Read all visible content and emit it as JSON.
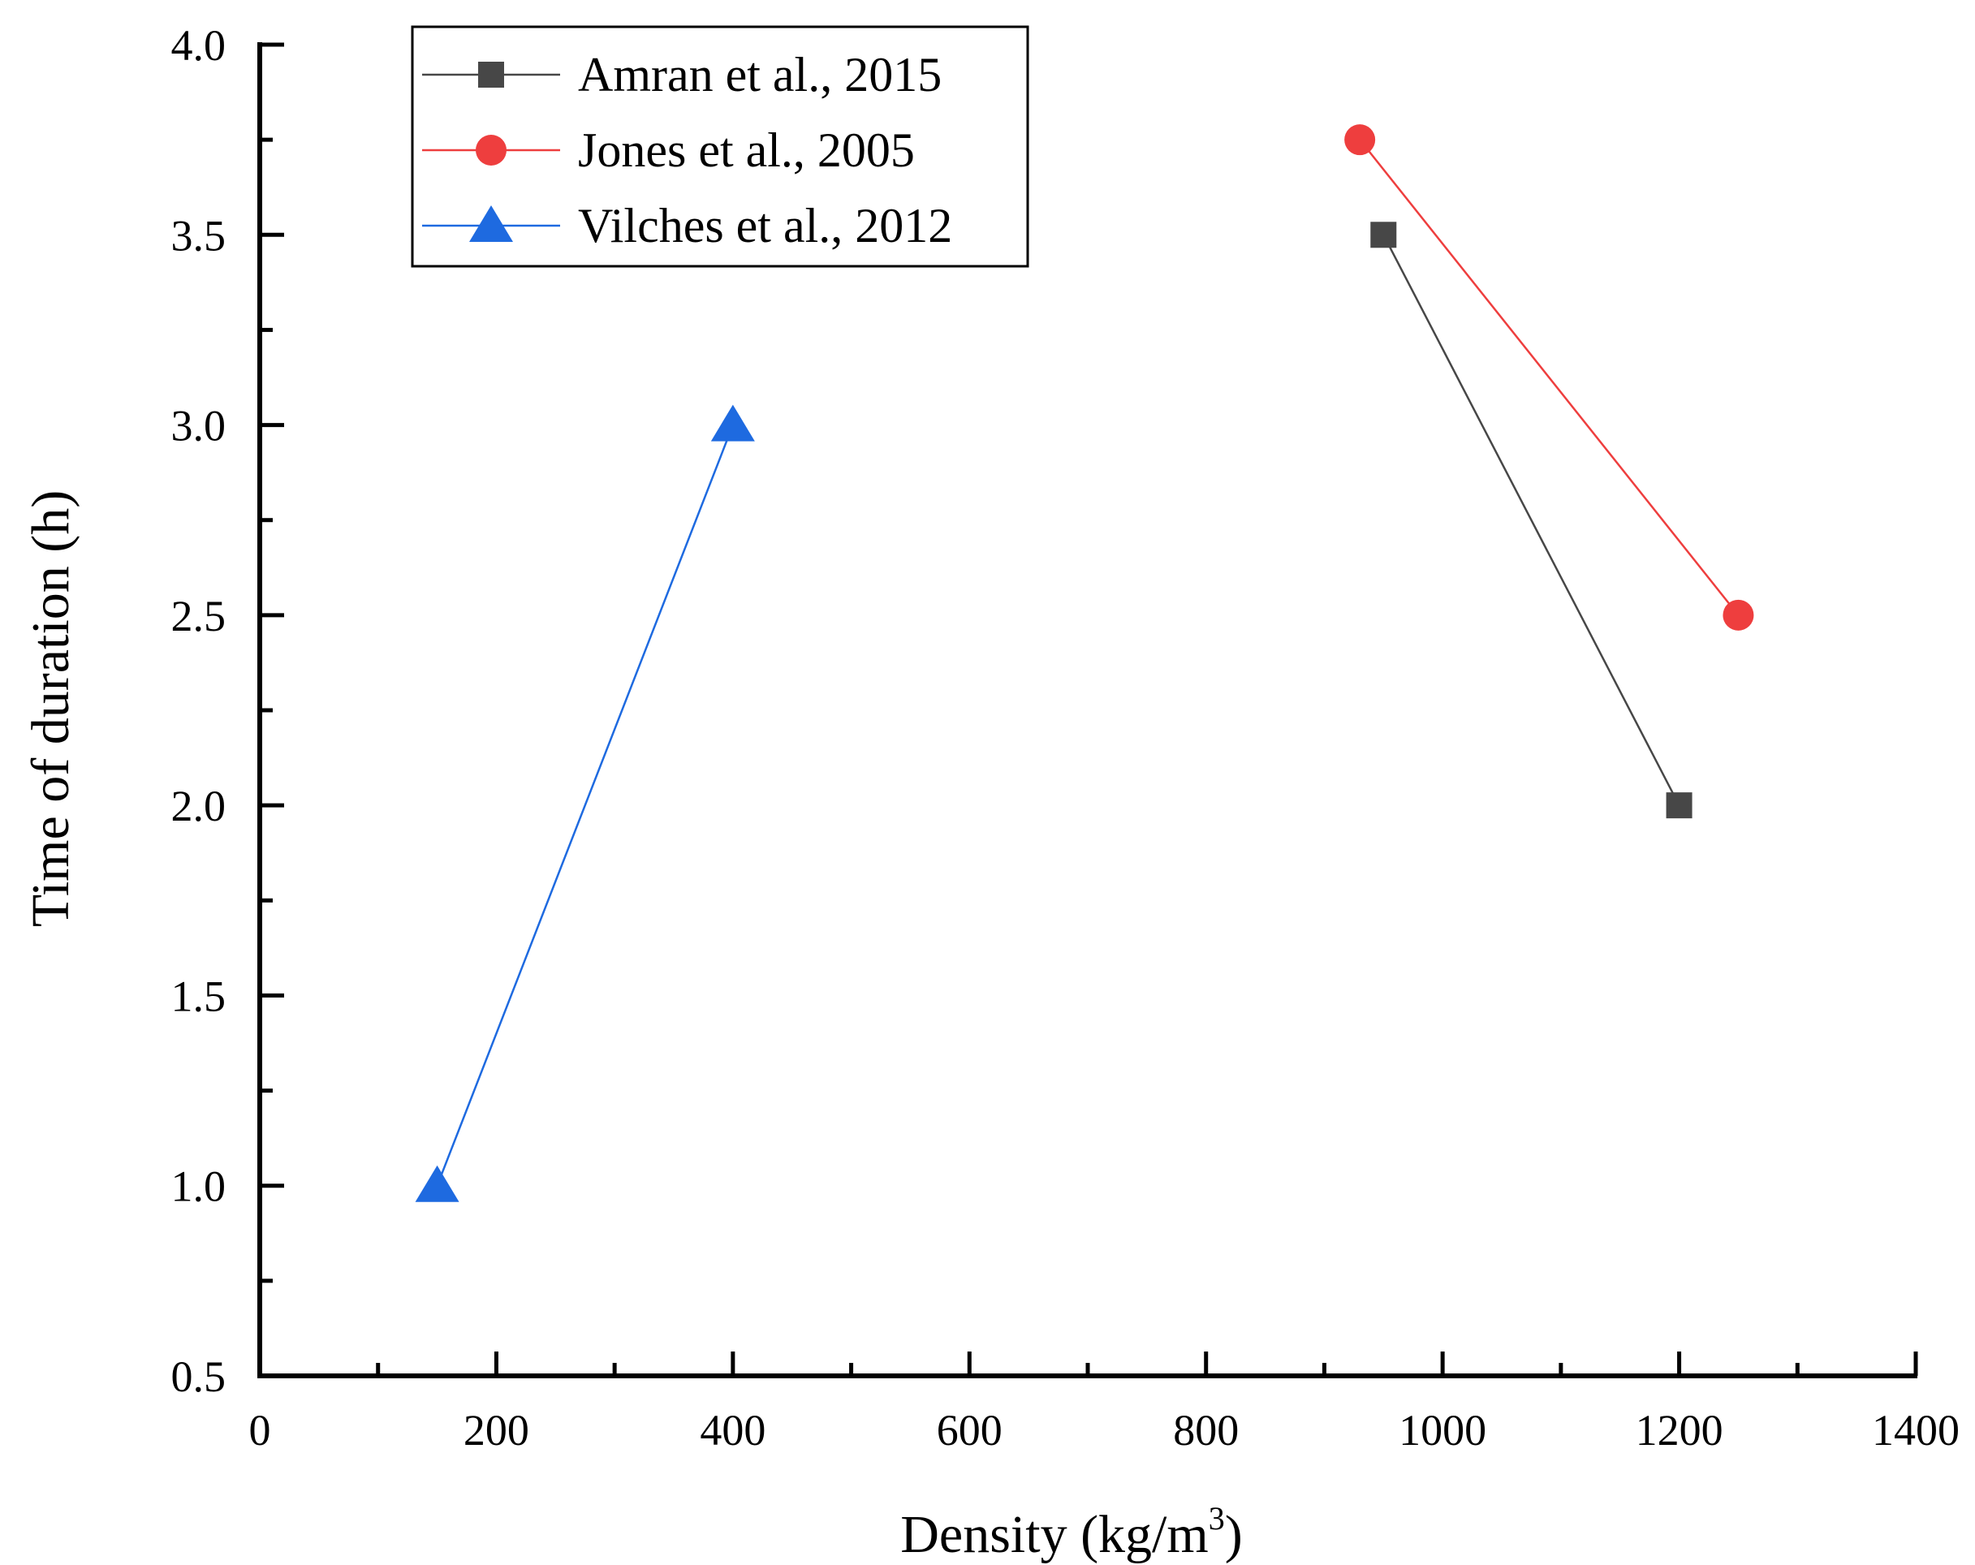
{
  "chart_data": {
    "type": "line",
    "title": "",
    "xlabel": "Density (kg/m",
    "xlabel_sup": "3",
    "xlabel_end": ")",
    "ylabel": "Time of duration (h)",
    "xlim": [
      0,
      1400
    ],
    "ylim": [
      0.5,
      4.0
    ],
    "x_major_ticks": [
      0,
      200,
      400,
      600,
      800,
      1000,
      1200,
      1400
    ],
    "x_tick_labels": [
      "0",
      "200",
      "400",
      "600",
      "800",
      "1000",
      "1200",
      "1400"
    ],
    "x_minor_ticks": [
      100,
      300,
      500,
      700,
      900,
      1100,
      1300
    ],
    "y_major_ticks": [
      0.5,
      1.0,
      1.5,
      2.0,
      2.5,
      3.0,
      3.5,
      4.0
    ],
    "y_tick_labels": [
      "0.5",
      "1.0",
      "1.5",
      "2.0",
      "2.5",
      "3.0",
      "3.5",
      "4.0"
    ],
    "y_minor_ticks": [
      0.75,
      1.25,
      1.75,
      2.25,
      2.75,
      3.25,
      3.75
    ],
    "grid": false,
    "legend_position": "top-left",
    "series": [
      {
        "name": "Amran et al., 2015",
        "marker": "square",
        "color": "#474747",
        "x": [
          950,
          1200
        ],
        "y": [
          3.5,
          2.0
        ]
      },
      {
        "name": "Jones et al., 2005",
        "marker": "circle",
        "color": "#ee3e3e",
        "x": [
          930,
          1250
        ],
        "y": [
          3.75,
          2.5
        ]
      },
      {
        "name": "Vilches et al., 2012",
        "marker": "triangle",
        "color": "#1e6ae0",
        "x": [
          150,
          400
        ],
        "y": [
          1.0,
          3.0
        ]
      }
    ]
  }
}
